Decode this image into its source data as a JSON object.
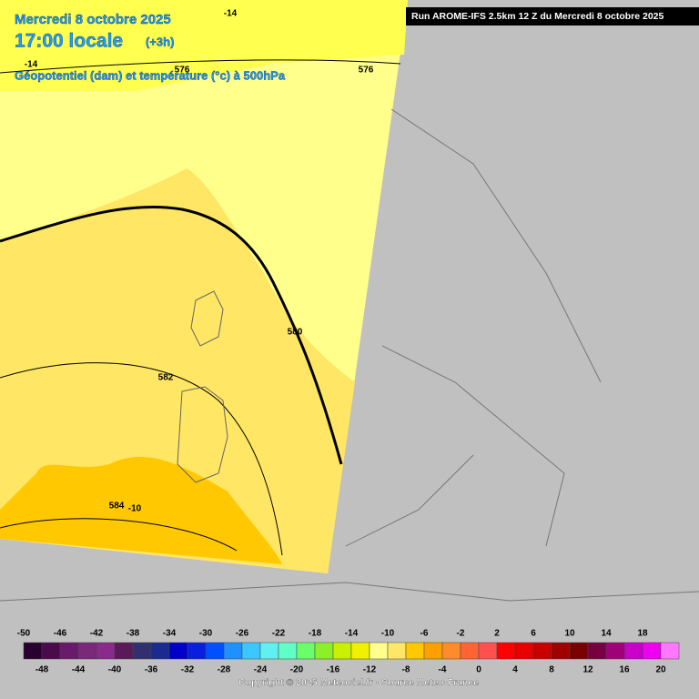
{
  "header": {
    "date": "Mercredi 8 octobre 2025",
    "time": "17:00 locale",
    "offset": "(+3h)",
    "subtitle": "Géopotentiel (dam) et température (°c) à 500hPa"
  },
  "run": "Run AROME-IFS 2.5km 12 Z du Mercredi 8 octobre 2025",
  "contour_labels": [
    "-14",
    "-14",
    "576",
    "576",
    "580",
    "582",
    "584",
    "-10"
  ],
  "legend": [
    {
      "value": -50,
      "color": "#2a0030"
    },
    {
      "value": -48,
      "color": "#4b0a4b"
    },
    {
      "value": -46,
      "color": "#6a1a6a"
    },
    {
      "value": -44,
      "color": "#7a287a"
    },
    {
      "value": -42,
      "color": "#8a2a8a"
    },
    {
      "value": -40,
      "color": "#5a1a5a"
    },
    {
      "value": -38,
      "color": "#303070"
    },
    {
      "value": -36,
      "color": "#1a2a90"
    },
    {
      "value": -34,
      "color": "#0000c8"
    },
    {
      "value": -32,
      "color": "#0a1ee0"
    },
    {
      "value": -30,
      "color": "#0050ff"
    },
    {
      "value": -28,
      "color": "#1e90ff"
    },
    {
      "value": -26,
      "color": "#3cc8ff"
    },
    {
      "value": -24,
      "color": "#60f0f0"
    },
    {
      "value": -22,
      "color": "#60ffc8"
    },
    {
      "value": -20,
      "color": "#6aff6a"
    },
    {
      "value": -18,
      "color": "#8cf028"
    },
    {
      "value": -16,
      "color": "#c8f000"
    },
    {
      "value": -14,
      "color": "#f0f000"
    },
    {
      "value": -12,
      "color": "#ffff8c"
    },
    {
      "value": -10,
      "color": "#ffe664"
    },
    {
      "value": -8,
      "color": "#ffc800"
    },
    {
      "value": -6,
      "color": "#ffa000"
    },
    {
      "value": -4,
      "color": "#ff8c28"
    },
    {
      "value": -2,
      "color": "#ff6432"
    },
    {
      "value": 0,
      "color": "#ff5050"
    },
    {
      "value": 2,
      "color": "#ff0000"
    },
    {
      "value": 4,
      "color": "#e60000"
    },
    {
      "value": 6,
      "color": "#c80000"
    },
    {
      "value": 8,
      "color": "#a00000"
    },
    {
      "value": 10,
      "color": "#780000"
    },
    {
      "value": 12,
      "color": "#780040"
    },
    {
      "value": 14,
      "color": "#a00078"
    },
    {
      "value": 16,
      "color": "#c800c8"
    },
    {
      "value": 18,
      "color": "#f000f0"
    },
    {
      "value": 20,
      "color": "#ff78ff"
    }
  ],
  "copyright": "Copyright © 2025 Meteociel.fr - Source Meteo-France"
}
